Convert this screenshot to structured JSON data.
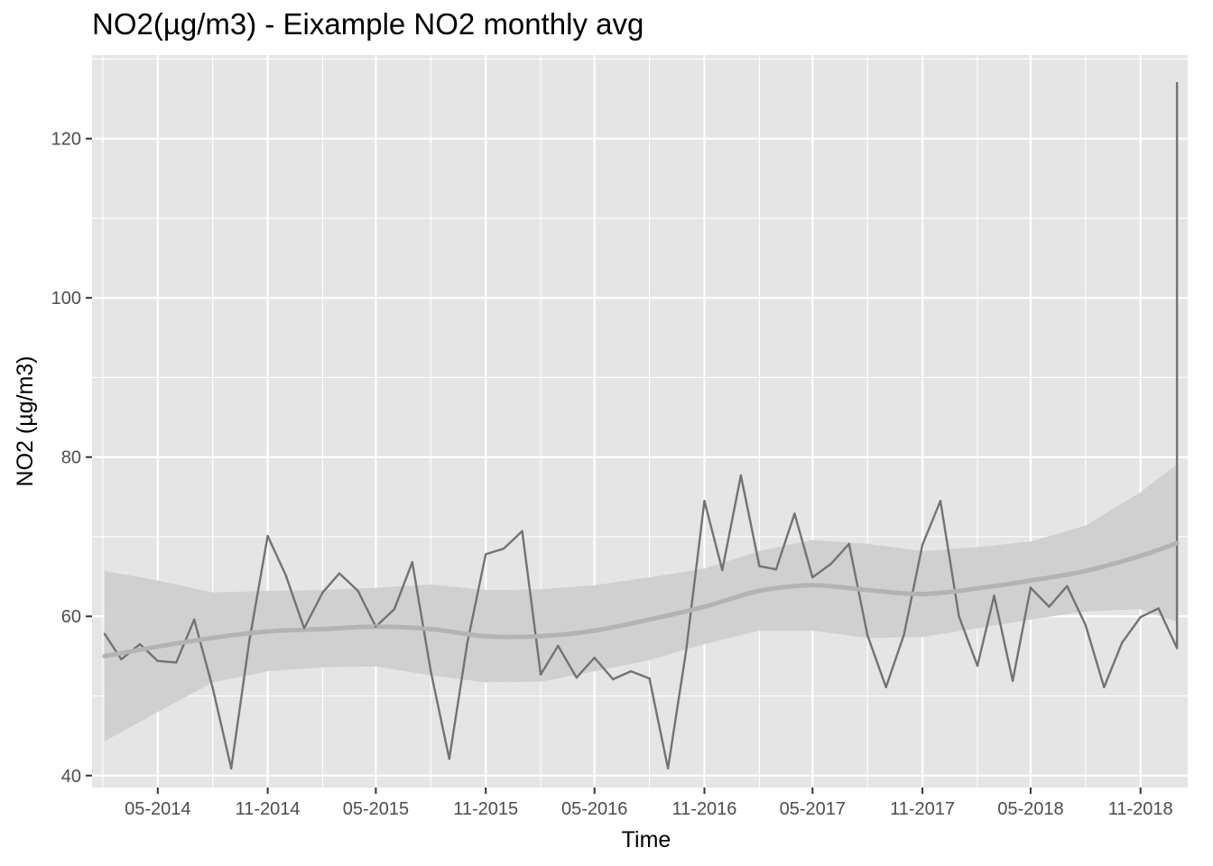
{
  "chart_data": {
    "type": "line",
    "title": "NO2(µg/m3) - Eixample NO2 monthly avg",
    "xlabel": "Time",
    "ylabel": "NO2 (µg/m3)",
    "ylim": [
      38.5,
      130.5
    ],
    "xlim": [
      "2014-01-11",
      "2019-01-19"
    ],
    "grid": true,
    "x_ticks": [
      {
        "date": "2014-05-01",
        "label": "05-2014"
      },
      {
        "date": "2014-11-01",
        "label": "11-2014"
      },
      {
        "date": "2015-05-01",
        "label": "05-2015"
      },
      {
        "date": "2015-11-01",
        "label": "11-2015"
      },
      {
        "date": "2016-05-01",
        "label": "05-2016"
      },
      {
        "date": "2016-11-01",
        "label": "11-2016"
      },
      {
        "date": "2017-05-01",
        "label": "05-2017"
      },
      {
        "date": "2017-11-01",
        "label": "11-2017"
      },
      {
        "date": "2018-05-01",
        "label": "05-2018"
      },
      {
        "date": "2018-11-01",
        "label": "11-2018"
      }
    ],
    "y_ticks": [
      40,
      60,
      80,
      100,
      120
    ],
    "colors": {
      "line": "#737373",
      "smooth": "#b3b3b3",
      "ribbon": "#d0d0d0",
      "panel": "#e5e5e5",
      "grid": "#ffffff"
    },
    "series": [
      {
        "dates": [
          "2014-02-01",
          "2014-03-01",
          "2014-04-01",
          "2014-05-01",
          "2014-06-01",
          "2014-07-01",
          "2014-08-01",
          "2014-09-01",
          "2014-10-01",
          "2014-11-01",
          "2014-12-01",
          "2015-01-01",
          "2015-02-01",
          "2015-03-01",
          "2015-04-01",
          "2015-05-01",
          "2015-06-01",
          "2015-07-01",
          "2015-08-01",
          "2015-09-01",
          "2015-10-01",
          "2015-11-01",
          "2015-12-01",
          "2016-01-01",
          "2016-02-01",
          "2016-03-01",
          "2016-04-01",
          "2016-05-01",
          "2016-06-01",
          "2016-07-01",
          "2016-08-01",
          "2016-09-01",
          "2016-10-01",
          "2016-11-01",
          "2016-12-01",
          "2017-01-01",
          "2017-02-01",
          "2017-03-01",
          "2017-04-01",
          "2017-05-01",
          "2017-06-01",
          "2017-07-01",
          "2017-08-01",
          "2017-09-01",
          "2017-10-01",
          "2017-11-01",
          "2017-12-01",
          "2018-01-01",
          "2018-02-01",
          "2018-03-01",
          "2018-04-01",
          "2018-05-01",
          "2018-06-01",
          "2018-07-01",
          "2018-08-01",
          "2018-09-01",
          "2018-10-01",
          "2018-11-01",
          "2018-12-01",
          "2019-01-01",
          "2019-01-01"
        ],
        "values": [
          57.8,
          54.6,
          56.5,
          54.4,
          54.2,
          59.6,
          51.0,
          40.9,
          56.8,
          70.1,
          65.2,
          58.5,
          63.0,
          65.4,
          63.2,
          58.7,
          60.9,
          66.8,
          53.1,
          42.1,
          56.6,
          67.8,
          68.5,
          70.7,
          52.7,
          56.3,
          52.3,
          54.8,
          52.1,
          53.1,
          52.2,
          40.9,
          55.5,
          74.5,
          65.8,
          77.7,
          66.3,
          65.9,
          72.9,
          64.9,
          66.6,
          69.1,
          57.6,
          51.1,
          57.7,
          69.0,
          74.5,
          60.0,
          53.8,
          62.6,
          51.9,
          63.6,
          61.2,
          63.8,
          58.9,
          51.1,
          56.7,
          59.9,
          61.0,
          56.0,
          127.0
        ]
      }
    ],
    "smooth": {
      "dates": [
        "2014-02-01",
        "2014-05-01",
        "2014-08-01",
        "2014-11-01",
        "2015-02-01",
        "2015-05-01",
        "2015-08-01",
        "2015-11-01",
        "2016-02-01",
        "2016-05-01",
        "2016-08-01",
        "2016-11-01",
        "2017-02-01",
        "2017-05-01",
        "2017-08-01",
        "2017-11-01",
        "2018-02-01",
        "2018-05-01",
        "2018-08-01",
        "2018-11-01",
        "2019-01-01"
      ],
      "fit": [
        55.0,
        56.2,
        57.3,
        58.1,
        58.4,
        58.7,
        58.4,
        57.5,
        57.5,
        58.2,
        59.6,
        61.2,
        63.2,
        63.9,
        63.3,
        62.8,
        63.5,
        64.5,
        65.7,
        67.6,
        69.2
      ],
      "lower": [
        44.3,
        48.0,
        51.7,
        53.1,
        53.6,
        53.7,
        52.6,
        51.7,
        51.8,
        53.1,
        54.5,
        56.5,
        58.2,
        58.2,
        57.3,
        57.4,
        58.5,
        59.6,
        60.6,
        60.9,
        59.3
      ],
      "upper": [
        65.7,
        64.5,
        63.0,
        63.2,
        63.3,
        63.6,
        64.0,
        63.3,
        63.4,
        63.9,
        64.9,
        66.0,
        68.2,
        69.6,
        69.1,
        68.2,
        68.7,
        69.4,
        71.4,
        75.6,
        79.1
      ]
    }
  }
}
